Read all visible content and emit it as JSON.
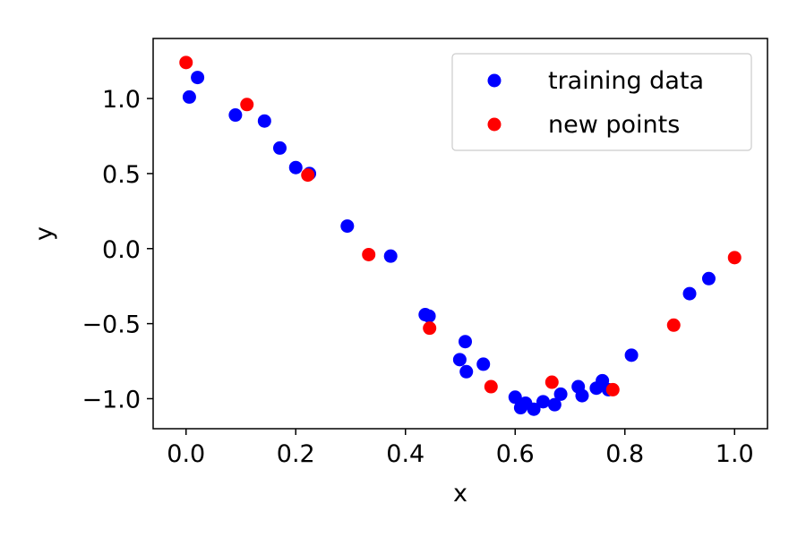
{
  "chart_data": {
    "type": "scatter",
    "xlabel": "x",
    "ylabel": "y",
    "xlim": [
      -0.06,
      1.06
    ],
    "ylim": [
      -1.2,
      1.4
    ],
    "xticks": [
      0.0,
      0.2,
      0.4,
      0.6,
      0.8,
      1.0
    ],
    "xtick_labels": [
      "0.0",
      "0.2",
      "0.4",
      "0.6",
      "0.8",
      "1.0"
    ],
    "yticks": [
      -1.0,
      -0.5,
      0.0,
      0.5,
      1.0
    ],
    "ytick_labels": [
      "−1.0",
      "−0.5",
      "0.0",
      "0.5",
      "1.0"
    ],
    "grid": false,
    "legend_position": "top-right",
    "series": [
      {
        "name": "training data",
        "color": "#0000ff",
        "x": [
          0.006,
          0.021,
          0.09,
          0.143,
          0.171,
          0.2,
          0.225,
          0.294,
          0.373,
          0.436,
          0.443,
          0.499,
          0.509,
          0.511,
          0.542,
          0.6,
          0.61,
          0.619,
          0.634,
          0.651,
          0.672,
          0.683,
          0.715,
          0.722,
          0.748,
          0.759,
          0.77,
          0.812,
          0.918,
          0.953
        ],
        "y": [
          1.01,
          1.14,
          0.89,
          0.85,
          0.67,
          0.54,
          0.5,
          0.15,
          -0.05,
          -0.44,
          -0.45,
          -0.74,
          -0.62,
          -0.82,
          -0.77,
          -0.99,
          -1.06,
          -1.03,
          -1.07,
          -1.02,
          -1.04,
          -0.97,
          -0.92,
          -0.98,
          -0.93,
          -0.88,
          -0.94,
          -0.71,
          -0.3,
          -0.2
        ]
      },
      {
        "name": "new points",
        "color": "#ff0000",
        "x": [
          0.0,
          0.111,
          0.222,
          0.333,
          0.444,
          0.556,
          0.667,
          0.778,
          0.889,
          1.0
        ],
        "y": [
          1.24,
          0.96,
          0.49,
          -0.04,
          -0.53,
          -0.92,
          -0.89,
          -0.94,
          -0.51,
          -0.06
        ]
      }
    ]
  }
}
